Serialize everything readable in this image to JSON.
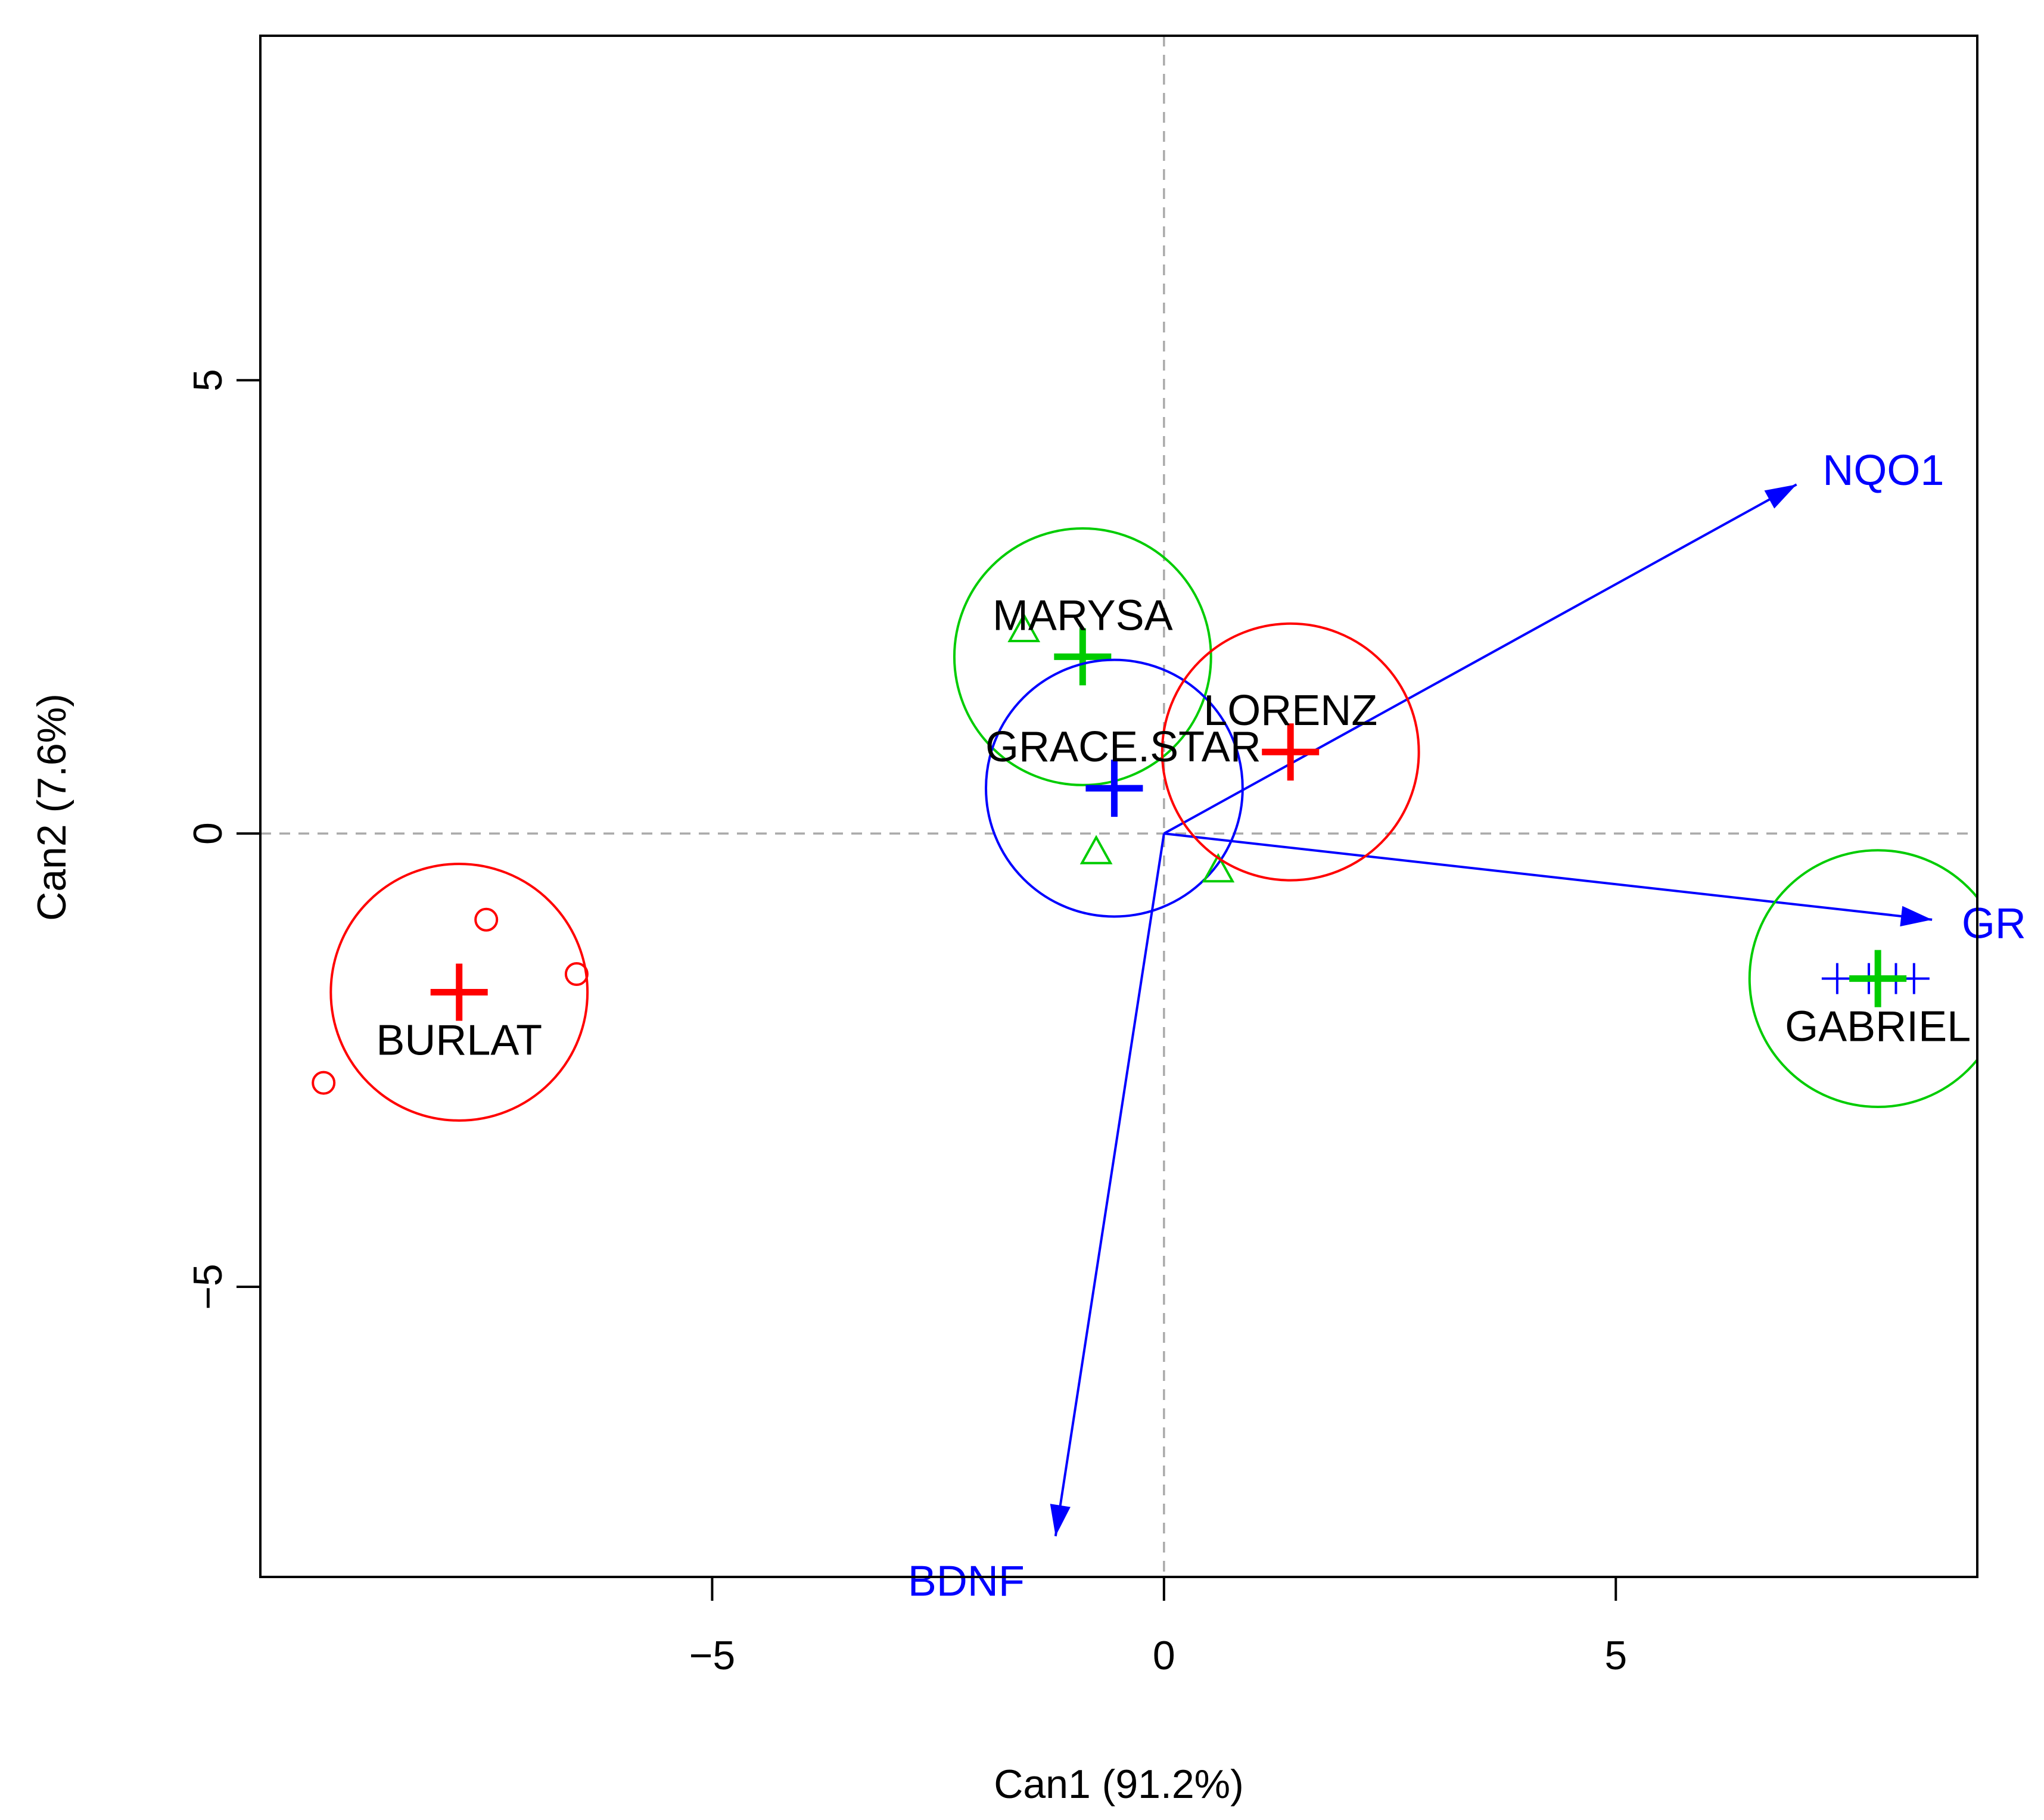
{
  "chart_data": {
    "type": "scatter",
    "subtype": "canonical discriminant biplot",
    "xlabel": "Can1 (91.2%)",
    "ylabel": "Can2 (7.6%)",
    "xlim": [
      -10.0,
      9.0
    ],
    "ylim": [
      -8.2,
      8.8
    ],
    "xticks": [
      -5,
      0,
      5
    ],
    "yticks": [
      -5,
      0,
      5
    ],
    "xtick_labels": [
      "−5",
      "0",
      "5"
    ],
    "ytick_labels": [
      "−5",
      "0",
      "5"
    ],
    "reference_lines": {
      "x": 0,
      "y": 0,
      "style": "dashed",
      "color": "#aaaaaa"
    },
    "groups": [
      {
        "name": "BURLAT",
        "color": "#ff0000",
        "marker": "circle",
        "center": [
          -7.8,
          -1.75
        ],
        "radius": 1.42,
        "points": [
          [
            -7.5,
            -0.95
          ],
          [
            -6.5,
            -1.55
          ],
          [
            -9.3,
            -2.75
          ]
        ]
      },
      {
        "name": "MARYSA",
        "color": "#00cc00",
        "marker": "triangle",
        "center": [
          -0.9,
          1.95
        ],
        "radius": 1.42,
        "points": [
          [
            -1.55,
            2.25
          ]
        ]
      },
      {
        "name": "GRACE.STAR",
        "color": "#0000ff",
        "marker": "triangle",
        "center": [
          -0.55,
          0.5
        ],
        "radius": 1.42,
        "points": [
          [
            -0.75,
            -0.2
          ],
          [
            0.6,
            -0.4
          ]
        ]
      },
      {
        "name": "LORENZ",
        "color": "#ff0000",
        "marker": "none",
        "center": [
          1.4,
          0.9
        ],
        "radius": 1.42,
        "points": []
      },
      {
        "name": "GABRIEL",
        "color": "#00cc00",
        "marker": "plus",
        "center": [
          7.9,
          -1.6
        ],
        "radius": 1.42,
        "points": [
          [
            7.45,
            -1.6
          ],
          [
            7.8,
            -1.6
          ],
          [
            8.1,
            -1.6
          ],
          [
            8.3,
            -1.6
          ]
        ]
      }
    ],
    "vectors": [
      {
        "name": "NQO1",
        "label": "NQO1",
        "x": 7.0,
        "y": 3.85,
        "color": "#0000ff"
      },
      {
        "name": "GR",
        "label": "GR",
        "x": 8.5,
        "y": -0.95,
        "color": "#0000ff"
      },
      {
        "name": "BDNF",
        "label": "BDNF",
        "x": -1.2,
        "y": -7.75,
        "color": "#0000ff"
      }
    ]
  }
}
